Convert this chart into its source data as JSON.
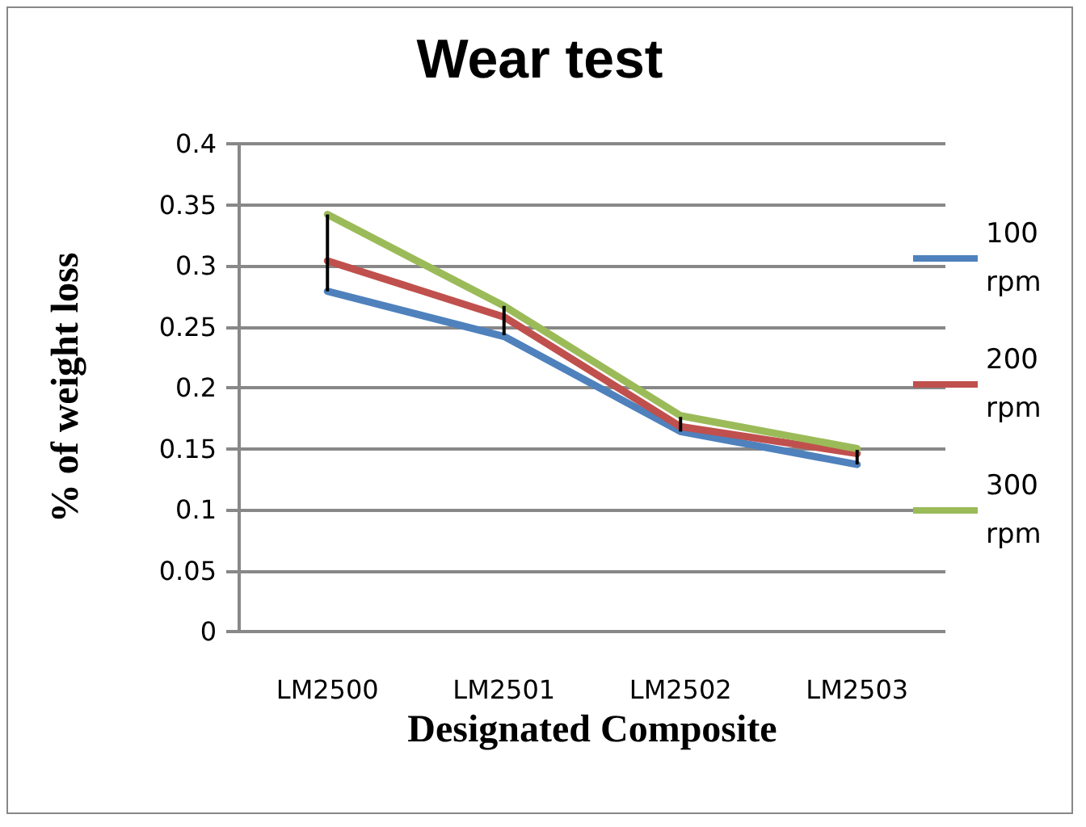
{
  "chart_data": {
    "type": "line",
    "title": "Wear test",
    "xlabel": "Designated Composite",
    "ylabel": "% of weight loss",
    "categories": [
      "LM2500",
      "LM2501",
      "LM2502",
      "LM2503"
    ],
    "series": [
      {
        "name": "100 rpm",
        "color": "#4f81bd",
        "values": [
          0.279,
          0.242,
          0.164,
          0.137
        ]
      },
      {
        "name": "200 rpm",
        "color": "#c0504d",
        "values": [
          0.304,
          0.258,
          0.168,
          0.146
        ],
        "errors": [
          [
            0.279,
            0.342
          ],
          [
            0.243,
            0.267
          ],
          [
            0.164,
            0.176
          ],
          [
            0.137,
            0.149
          ]
        ]
      },
      {
        "name": "300 rpm",
        "color": "#9bbb59",
        "values": [
          0.342,
          0.267,
          0.177,
          0.15
        ]
      }
    ],
    "ylim": [
      0,
      0.4
    ],
    "yticks": [
      0,
      0.05,
      0.1,
      0.15,
      0.2,
      0.25,
      0.3,
      0.35,
      0.4
    ],
    "grid": "y",
    "legend": "right",
    "marker": "none",
    "line_style": "solid"
  }
}
